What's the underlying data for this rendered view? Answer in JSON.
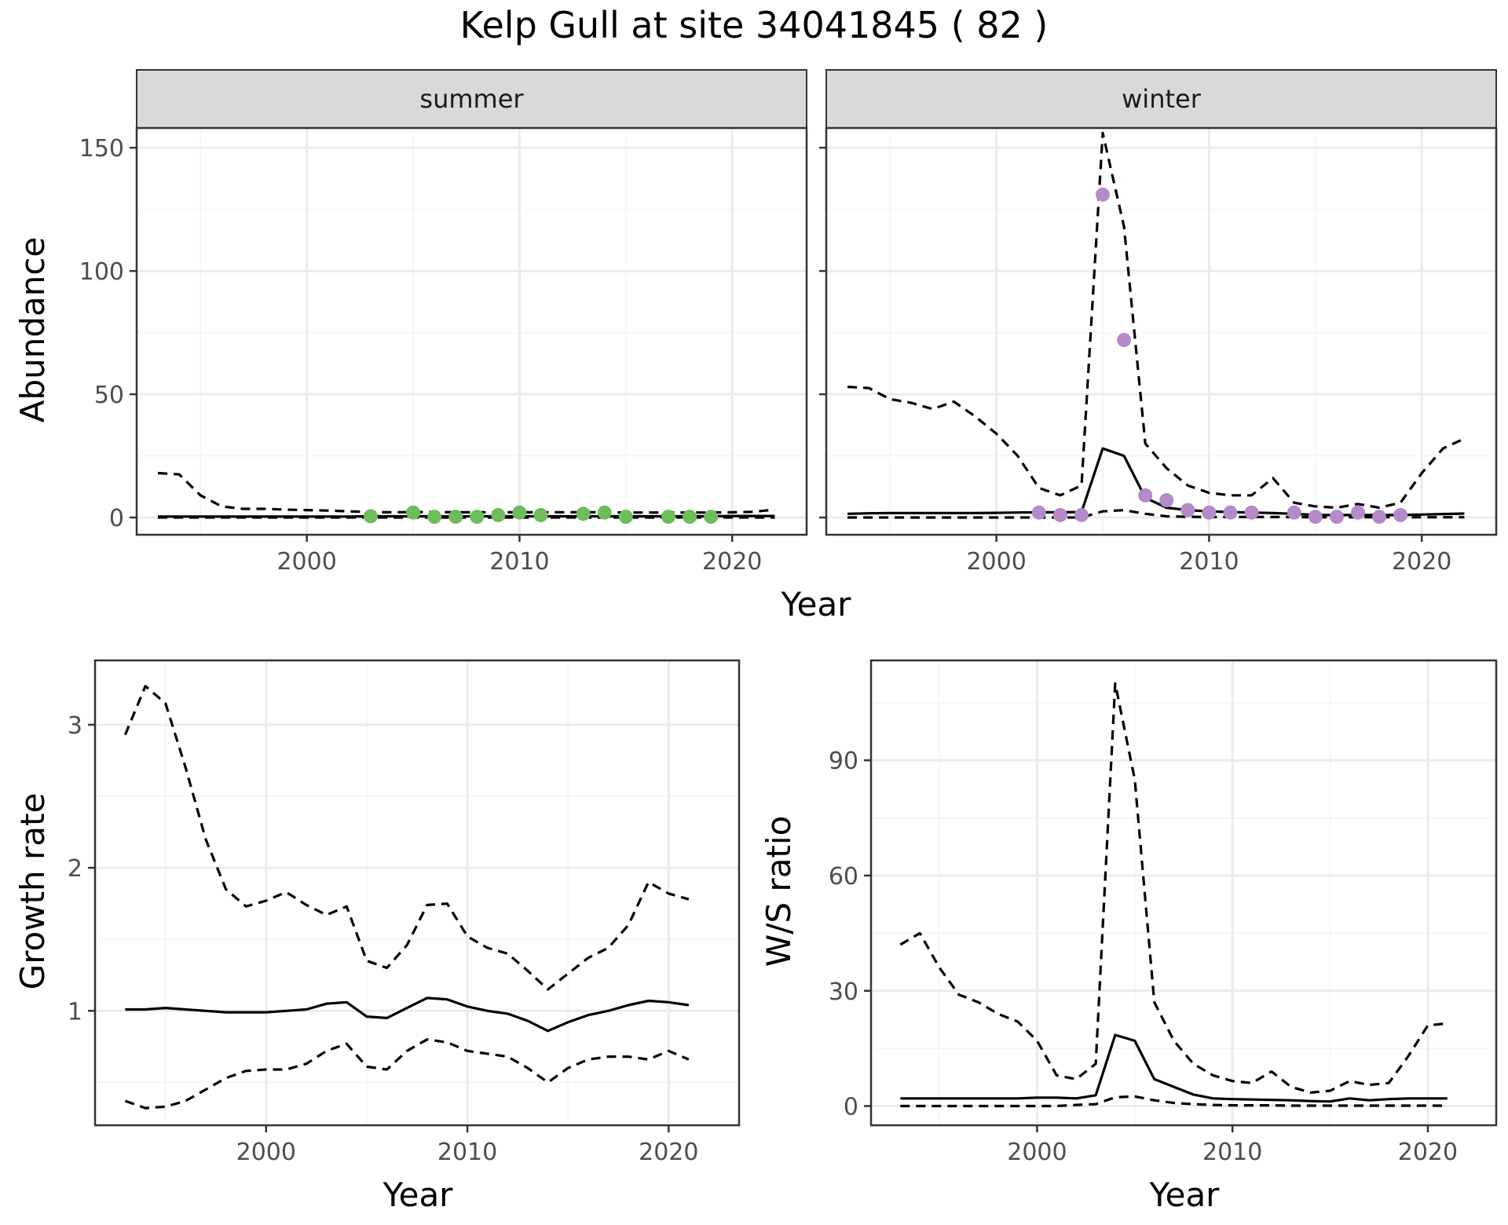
{
  "title": "Kelp Gull at site 34041845 ( 82 )",
  "colors": {
    "summer_points": "#6dbd5b",
    "winter_points": "#b48ac8",
    "line": "#000000",
    "strip_fill": "#d9d9d9",
    "grid_major": "#ebebeb",
    "grid_minor": "#f4f4f4",
    "panel_border": "#333333"
  },
  "chart_data": [
    {
      "type": "line",
      "facet": "summer",
      "xlabel": "Year",
      "ylabel": "Abundance",
      "xlim": [
        1992,
        2023.5
      ],
      "ylim": [
        -7,
        158
      ],
      "xticks": [
        2000,
        2010,
        2020
      ],
      "yticks": [
        0,
        50,
        100,
        150
      ],
      "grid": true,
      "x": [
        1993,
        1994,
        1995,
        1996,
        1997,
        1998,
        1999,
        2000,
        2001,
        2002,
        2003,
        2004,
        2005,
        2006,
        2007,
        2008,
        2009,
        2010,
        2011,
        2012,
        2013,
        2014,
        2015,
        2016,
        2017,
        2018,
        2019,
        2020,
        2021,
        2022
      ],
      "series": [
        {
          "role": "estimate",
          "style": "solid",
          "values": [
            0.4,
            0.4,
            0.4,
            0.4,
            0.4,
            0.4,
            0.4,
            0.4,
            0.4,
            0.4,
            0.5,
            0.5,
            0.5,
            0.5,
            0.5,
            0.5,
            0.5,
            0.5,
            0.5,
            0.5,
            0.5,
            0.5,
            0.5,
            0.5,
            0.5,
            0.5,
            0.5,
            0.6,
            0.6,
            0.6
          ]
        },
        {
          "role": "upper",
          "style": "dashed",
          "values": [
            18,
            17.5,
            9,
            4.5,
            3.5,
            3.5,
            3.2,
            3,
            2.8,
            2.5,
            2.2,
            2.1,
            2.2,
            2.2,
            2.1,
            2.1,
            2.1,
            2.1,
            2.1,
            2.1,
            2.1,
            2.1,
            2.0,
            2.0,
            2.0,
            2.0,
            2.0,
            2.1,
            2.3,
            3.2
          ]
        },
        {
          "role": "lower",
          "style": "dashed",
          "values": [
            0,
            0,
            0,
            0,
            0,
            0,
            0,
            0,
            0,
            0,
            0,
            0,
            0,
            0,
            0,
            0,
            0,
            0,
            0,
            0,
            0,
            0,
            0,
            0,
            0,
            0,
            0,
            0,
            0,
            0
          ]
        }
      ],
      "points": {
        "x": [
          2003,
          2005,
          2006,
          2007,
          2008,
          2009,
          2010,
          2011,
          2013,
          2014,
          2015,
          2017,
          2018,
          2019
        ],
        "y": [
          0.5,
          2,
          0.3,
          0.3,
          0.3,
          1,
          2,
          1,
          1.5,
          2,
          0.3,
          0.3,
          0.3,
          0.3
        ]
      }
    },
    {
      "type": "line",
      "facet": "winter",
      "xlabel": "Year",
      "ylabel": "",
      "xlim": [
        1992,
        2023.5
      ],
      "ylim": [
        -7,
        158
      ],
      "xticks": [
        2000,
        2010,
        2020
      ],
      "yticks": [
        0,
        50,
        100,
        150
      ],
      "grid": true,
      "x": [
        1993,
        1994,
        1995,
        1996,
        1997,
        1998,
        1999,
        2000,
        2001,
        2002,
        2003,
        2004,
        2005,
        2006,
        2007,
        2008,
        2009,
        2010,
        2011,
        2012,
        2013,
        2014,
        2015,
        2016,
        2017,
        2018,
        2019,
        2020,
        2021,
        2022
      ],
      "series": [
        {
          "role": "estimate",
          "style": "solid",
          "values": [
            1.5,
            1.7,
            1.8,
            1.8,
            1.8,
            1.8,
            1.8,
            1.9,
            2.0,
            2.1,
            2.1,
            2.2,
            28,
            25,
            8,
            4,
            3,
            2.5,
            2.2,
            2.0,
            1.8,
            1.5,
            1.0,
            1.0,
            1.0,
            1.0,
            1.0,
            1.2,
            1.4,
            1.6
          ]
        },
        {
          "role": "upper",
          "style": "dashed",
          "values": [
            53,
            52.5,
            48,
            46.5,
            44,
            47,
            41,
            34,
            25,
            12,
            9,
            13,
            156,
            118,
            30,
            20,
            13,
            10,
            9,
            9,
            16,
            6,
            4.5,
            4,
            5.5,
            4,
            6,
            18,
            28,
            32
          ]
        },
        {
          "role": "lower",
          "style": "dashed",
          "values": [
            0,
            0,
            0,
            0,
            0,
            0,
            0,
            0,
            0,
            0,
            0,
            0,
            2.5,
            3,
            1.5,
            0.5,
            0.3,
            0.2,
            0.2,
            0.2,
            0.2,
            0.2,
            0.1,
            0.1,
            0.1,
            0.1,
            0.1,
            0.1,
            0.1,
            0.1
          ]
        }
      ],
      "points": {
        "x": [
          2002,
          2003,
          2004,
          2005,
          2006,
          2007,
          2008,
          2009,
          2010,
          2011,
          2012,
          2014,
          2015,
          2016,
          2017,
          2018,
          2019
        ],
        "y": [
          2,
          1,
          1,
          131,
          72,
          9,
          7,
          3,
          2,
          2,
          2,
          2,
          0.3,
          0.3,
          2,
          0.3,
          1
        ]
      }
    },
    {
      "type": "line",
      "facet": "",
      "xlabel": "Year",
      "ylabel": "Growth rate",
      "xlim": [
        1991.5,
        2023.5
      ],
      "ylim": [
        0.2,
        3.45
      ],
      "xticks": [
        2000,
        2010,
        2020
      ],
      "yticks": [
        1,
        2,
        3
      ],
      "grid": true,
      "x": [
        1993,
        1994,
        1995,
        1996,
        1997,
        1998,
        1999,
        2000,
        2001,
        2002,
        2003,
        2004,
        2005,
        2006,
        2007,
        2008,
        2009,
        2010,
        2011,
        2012,
        2013,
        2014,
        2015,
        2016,
        2017,
        2018,
        2019,
        2020,
        2021
      ],
      "series": [
        {
          "role": "estimate",
          "style": "solid",
          "values": [
            1.01,
            1.01,
            1.02,
            1.01,
            1.0,
            0.99,
            0.99,
            0.99,
            1.0,
            1.01,
            1.05,
            1.06,
            0.96,
            0.95,
            1.02,
            1.09,
            1.08,
            1.03,
            1.0,
            0.98,
            0.93,
            0.86,
            0.92,
            0.97,
            1.0,
            1.04,
            1.07,
            1.06,
            1.04
          ]
        },
        {
          "role": "upper",
          "style": "dashed",
          "values": [
            2.93,
            3.27,
            3.15,
            2.7,
            2.2,
            1.85,
            1.73,
            1.77,
            1.83,
            1.74,
            1.67,
            1.73,
            1.35,
            1.3,
            1.46,
            1.74,
            1.75,
            1.52,
            1.44,
            1.4,
            1.28,
            1.15,
            1.26,
            1.37,
            1.44,
            1.6,
            1.9,
            1.82,
            1.78
          ]
        },
        {
          "role": "lower",
          "style": "dashed",
          "values": [
            0.37,
            0.32,
            0.33,
            0.37,
            0.45,
            0.53,
            0.58,
            0.59,
            0.59,
            0.63,
            0.72,
            0.77,
            0.61,
            0.59,
            0.72,
            0.8,
            0.78,
            0.72,
            0.7,
            0.68,
            0.6,
            0.5,
            0.6,
            0.66,
            0.68,
            0.68,
            0.66,
            0.72,
            0.66
          ]
        }
      ]
    },
    {
      "type": "line",
      "facet": "",
      "xlabel": "Year",
      "ylabel": "W/S ratio",
      "xlim": [
        1991.5,
        2023.5
      ],
      "ylim": [
        -5,
        116
      ],
      "xticks": [
        2000,
        2010,
        2020
      ],
      "yticks": [
        0,
        30,
        60,
        90
      ],
      "grid": true,
      "x": [
        1993,
        1994,
        1995,
        1996,
        1997,
        1998,
        1999,
        2000,
        2001,
        2002,
        2003,
        2004,
        2005,
        2006,
        2007,
        2008,
        2009,
        2010,
        2011,
        2012,
        2013,
        2014,
        2015,
        2016,
        2017,
        2018,
        2019,
        2020,
        2021
      ],
      "series": [
        {
          "role": "estimate",
          "style": "solid",
          "values": [
            2,
            2,
            2,
            2,
            2,
            2,
            2,
            2.2,
            2.2,
            2.0,
            2.8,
            18.5,
            17,
            7,
            5,
            3,
            2,
            1.8,
            1.7,
            1.6,
            1.5,
            1.3,
            1.2,
            2,
            1.5,
            1.8,
            2,
            2,
            2
          ]
        },
        {
          "role": "upper",
          "style": "dashed",
          "values": [
            42,
            45,
            36,
            29,
            27,
            24,
            22,
            17,
            8,
            7,
            11,
            110,
            85,
            27,
            17,
            11,
            8,
            6.5,
            6,
            9,
            5,
            3.5,
            4,
            6.5,
            5.5,
            6,
            13,
            21,
            21.5
          ]
        },
        {
          "role": "lower",
          "style": "dashed",
          "values": [
            0,
            0,
            0,
            0,
            0,
            0,
            0,
            0,
            0,
            0.3,
            0.5,
            2.3,
            2.5,
            1.5,
            0.8,
            0.5,
            0.3,
            0.2,
            0.2,
            0.2,
            0.1,
            0.1,
            0.1,
            0.1,
            0.1,
            0.1,
            0.1,
            0.1,
            0.1
          ]
        }
      ]
    }
  ]
}
